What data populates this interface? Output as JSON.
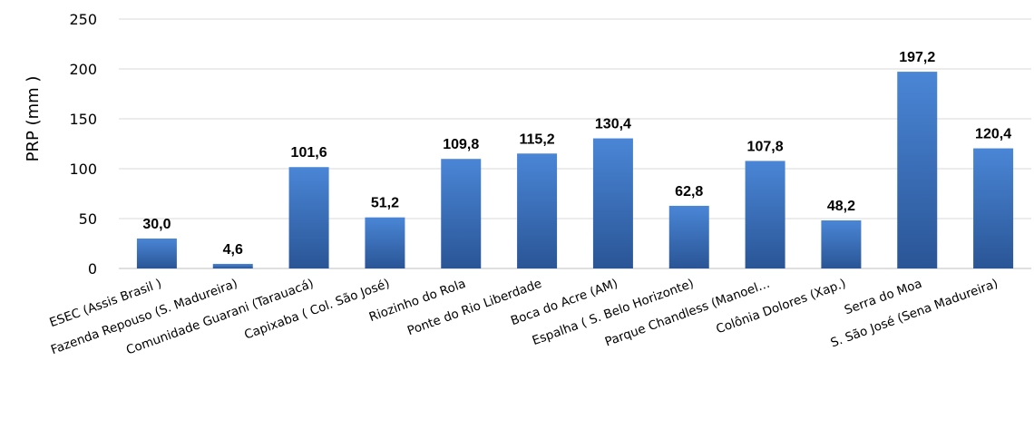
{
  "chart_data": {
    "type": "bar",
    "ylabel": "PRP (mm )",
    "ylim": [
      0,
      250
    ],
    "yticks": [
      0,
      50,
      100,
      150,
      200,
      250
    ],
    "grid": true,
    "legend": "none",
    "categories": [
      "ESEC (Assis Brasil )",
      "Fazenda Repouso (S. Madureira)",
      "Comunidade Guarani (Tarauacá)",
      "Capixaba ( Col. São José)",
      "Riozinho do Rola",
      "Ponte do Rio Liberdade",
      "Boca do Acre (AM)",
      "Espalha ( S. Belo Horizonte)",
      "Parque Chandless (Manoel…",
      "Colônia Dolores (Xap.)",
      "Serra do Moa",
      "S. São José (Sena Madureira)"
    ],
    "values": [
      30.0,
      4.6,
      101.6,
      51.2,
      109.8,
      115.2,
      130.4,
      62.8,
      107.8,
      48.2,
      197.2,
      120.4
    ],
    "data_labels": [
      "30,0",
      "4,6",
      "101,6",
      "51,2",
      "109,8",
      "115,2",
      "130,4",
      "62,8",
      "107,8",
      "48,2",
      "197,2",
      "120,4"
    ],
    "colors": {
      "bar_top": "#4a86d6",
      "bar_bottom": "#2a5596",
      "grid": "#d9d9d9"
    }
  }
}
